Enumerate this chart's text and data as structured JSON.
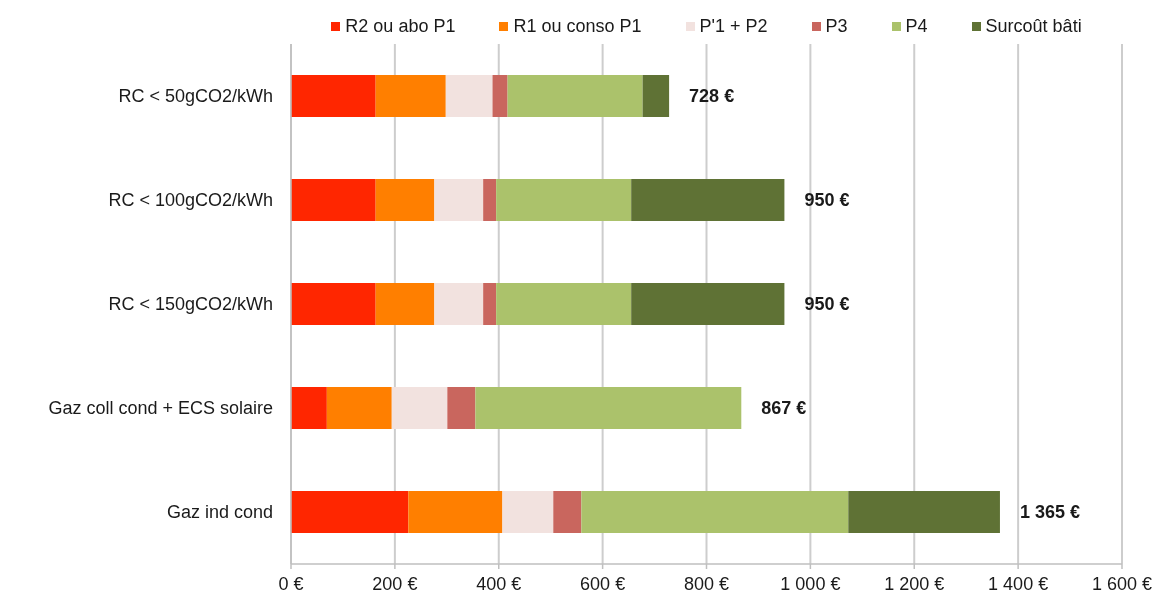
{
  "chart_data": {
    "type": "bar",
    "orientation": "horizontal",
    "stacked": true,
    "categories": [
      "RC < 50gCO2/kWh",
      "RC < 100gCO2/kWh",
      "RC < 150gCO2/kWh",
      "Gaz coll cond + ECS solaire",
      "Gaz ind cond"
    ],
    "series": [
      {
        "name": "R2 ou abo P1",
        "color": "#ff2600",
        "values": [
          163,
          163,
          163,
          69,
          226
        ]
      },
      {
        "name": "R1 ou conso P1",
        "color": "#ff7f00",
        "values": [
          135,
          113,
          113,
          125,
          181
        ]
      },
      {
        "name": "P'1 + P2",
        "color": "#f2e2df",
        "values": [
          90,
          94,
          94,
          107,
          98
        ]
      },
      {
        "name": "P3",
        "color": "#c9665e",
        "values": [
          29,
          25,
          25,
          54,
          54
        ]
      },
      {
        "name": "P4",
        "color": "#abc26b",
        "values": [
          260,
          260,
          260,
          512,
          514
        ]
      },
      {
        "name": "Surcoût bâti",
        "color": "#5f7235",
        "values": [
          51,
          295,
          295,
          0,
          292
        ]
      }
    ],
    "xlim": [
      0,
      1600
    ],
    "xticks": [
      {
        "value": 0,
        "label": "0 €"
      },
      {
        "value": 200,
        "label": "200 €"
      },
      {
        "value": 400,
        "label": "400 €"
      },
      {
        "value": 600,
        "label": "600 €"
      },
      {
        "value": 800,
        "label": "800 €"
      },
      {
        "value": 1000,
        "label": "1 000 €"
      },
      {
        "value": 1200,
        "label": "1 200 €"
      },
      {
        "value": 1400,
        "label": "1 400 €"
      },
      {
        "value": 1600,
        "label": "1 600 €"
      }
    ],
    "totals": [
      "728 €",
      "950 €",
      "950 €",
      "867 €",
      "1 365 €"
    ],
    "grid": "x",
    "legend": "top"
  }
}
